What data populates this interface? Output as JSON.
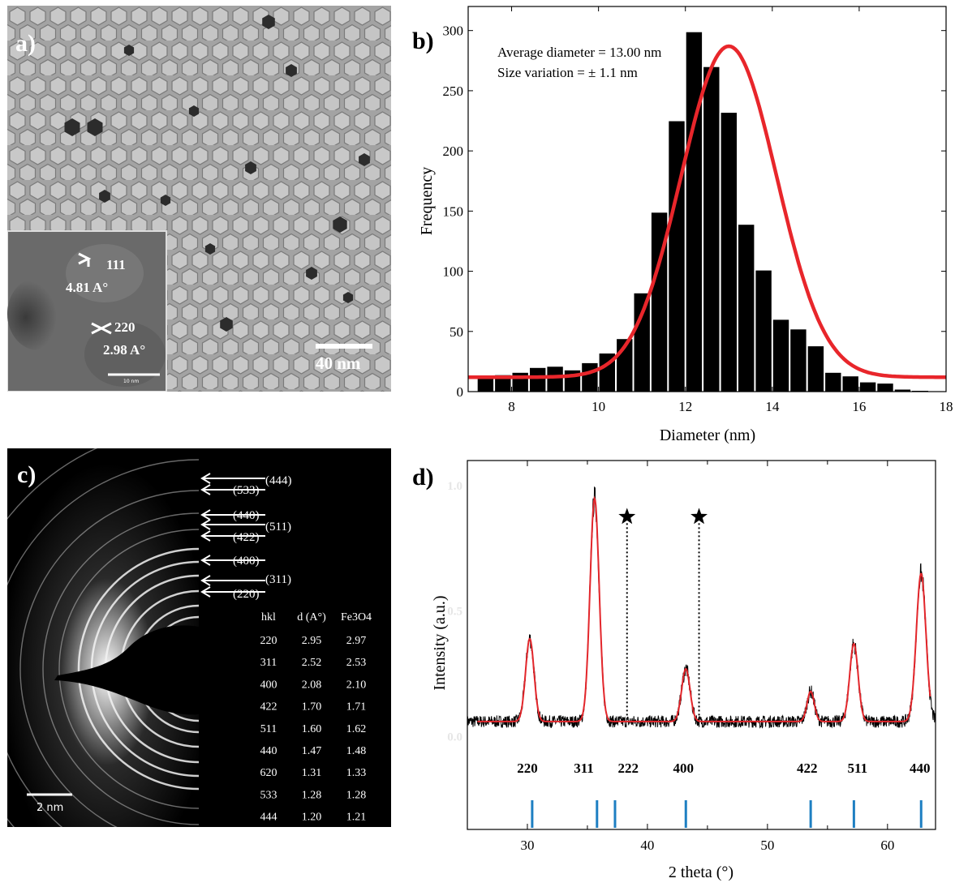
{
  "panel_a": {
    "label": "a)",
    "inset_annotations": [
      {
        "plane": "111",
        "spacing": "4.81 A°"
      },
      {
        "plane": "220",
        "spacing": "2.98 A°"
      }
    ],
    "inset_scale": "10 nm",
    "scale_bar": "40 nm"
  },
  "panel_c": {
    "label": "c)",
    "scale_bar": "2 nm",
    "ring_labels": [
      "(444)",
      "(533)",
      "(440)",
      "(511)",
      "(422)",
      "(400)",
      "(311)",
      "(220)"
    ],
    "table": {
      "headers": [
        "hkl",
        "d (A°)",
        "Fe3O4"
      ],
      "rows": [
        [
          "220",
          "2.95",
          "2.97"
        ],
        [
          "311",
          "2.52",
          "2.53"
        ],
        [
          "400",
          "2.08",
          "2.10"
        ],
        [
          "422",
          "1.70",
          "1.71"
        ],
        [
          "511",
          "1.60",
          "1.62"
        ],
        [
          "440",
          "1.47",
          "1.48"
        ],
        [
          "620",
          "1.31",
          "1.33"
        ],
        [
          "533",
          "1.28",
          "1.28"
        ],
        [
          "444",
          "1.20",
          "1.21"
        ]
      ]
    }
  },
  "chart_data": [
    {
      "panel": "b)",
      "type": "bar",
      "xlabel": "Diameter (nm)",
      "ylabel": "Frequency",
      "xlim": [
        7,
        18
      ],
      "ylim": [
        0,
        320
      ],
      "xticks": [
        8,
        10,
        12,
        14,
        16,
        18
      ],
      "yticks": [
        0,
        50,
        100,
        150,
        200,
        250,
        300
      ],
      "annotations": [
        "Average diameter = 13.00 nm",
        "Size variation = ± 1.1 nm"
      ],
      "bin_width": 0.4,
      "bins": [
        7.4,
        7.8,
        8.2,
        8.6,
        9.0,
        9.4,
        9.8,
        10.2,
        10.6,
        11.0,
        11.4,
        11.8,
        12.2,
        12.6,
        13.0,
        13.4,
        13.8,
        14.2,
        14.6,
        15.0,
        15.4,
        15.8,
        16.2,
        16.6,
        17.0,
        17.4,
        17.8
      ],
      "values": [
        12,
        14,
        16,
        20,
        21,
        18,
        24,
        32,
        44,
        82,
        149,
        225,
        299,
        270,
        232,
        139,
        101,
        60,
        52,
        38,
        16,
        13,
        8,
        7,
        2,
        1,
        0
      ],
      "fit": {
        "type": "gaussian",
        "center": 13.0,
        "sigma": 1.1,
        "amplitude": 275,
        "baseline": 12,
        "color": "#e8262b"
      },
      "bar_color": "#000000"
    },
    {
      "panel": "d)",
      "type": "line",
      "xlabel": "2 theta (°)",
      "ylabel": "Intensity (a.u.)",
      "xlim": [
        25,
        64
      ],
      "ylim": [
        -0.37,
        1.1
      ],
      "xticks": [
        30,
        40,
        50,
        60
      ],
      "yticks": [
        0.0,
        0.5,
        1.0
      ],
      "baseline": 0.06,
      "peaks": [
        {
          "x": 30.2,
          "height": 0.33,
          "width": 0.35
        },
        {
          "x": 35.6,
          "height": 0.89,
          "width": 0.38
        },
        {
          "x": 43.2,
          "height": 0.21,
          "width": 0.35
        },
        {
          "x": 53.6,
          "height": 0.12,
          "width": 0.3
        },
        {
          "x": 57.2,
          "height": 0.31,
          "width": 0.35
        },
        {
          "x": 62.8,
          "height": 0.59,
          "width": 0.4
        }
      ],
      "star_markers": [
        38.3,
        44.3
      ],
      "reference_lines": [
        {
          "x": 30.4,
          "hkl": "220"
        },
        {
          "x": 35.8,
          "hkl": "311"
        },
        {
          "x": 37.3,
          "hkl": "222"
        },
        {
          "x": 43.2,
          "hkl": "400"
        },
        {
          "x": 53.6,
          "hkl": "422"
        },
        {
          "x": 57.2,
          "hkl": "511"
        },
        {
          "x": 62.8,
          "hkl": "440"
        }
      ],
      "hkl_label_positions": [
        30.0,
        34.7,
        38.4,
        43.0,
        53.3,
        57.5,
        62.7
      ],
      "fit_color": "#e3262b",
      "data_color": "#000000",
      "ref_color": "#1e7fc2"
    }
  ]
}
